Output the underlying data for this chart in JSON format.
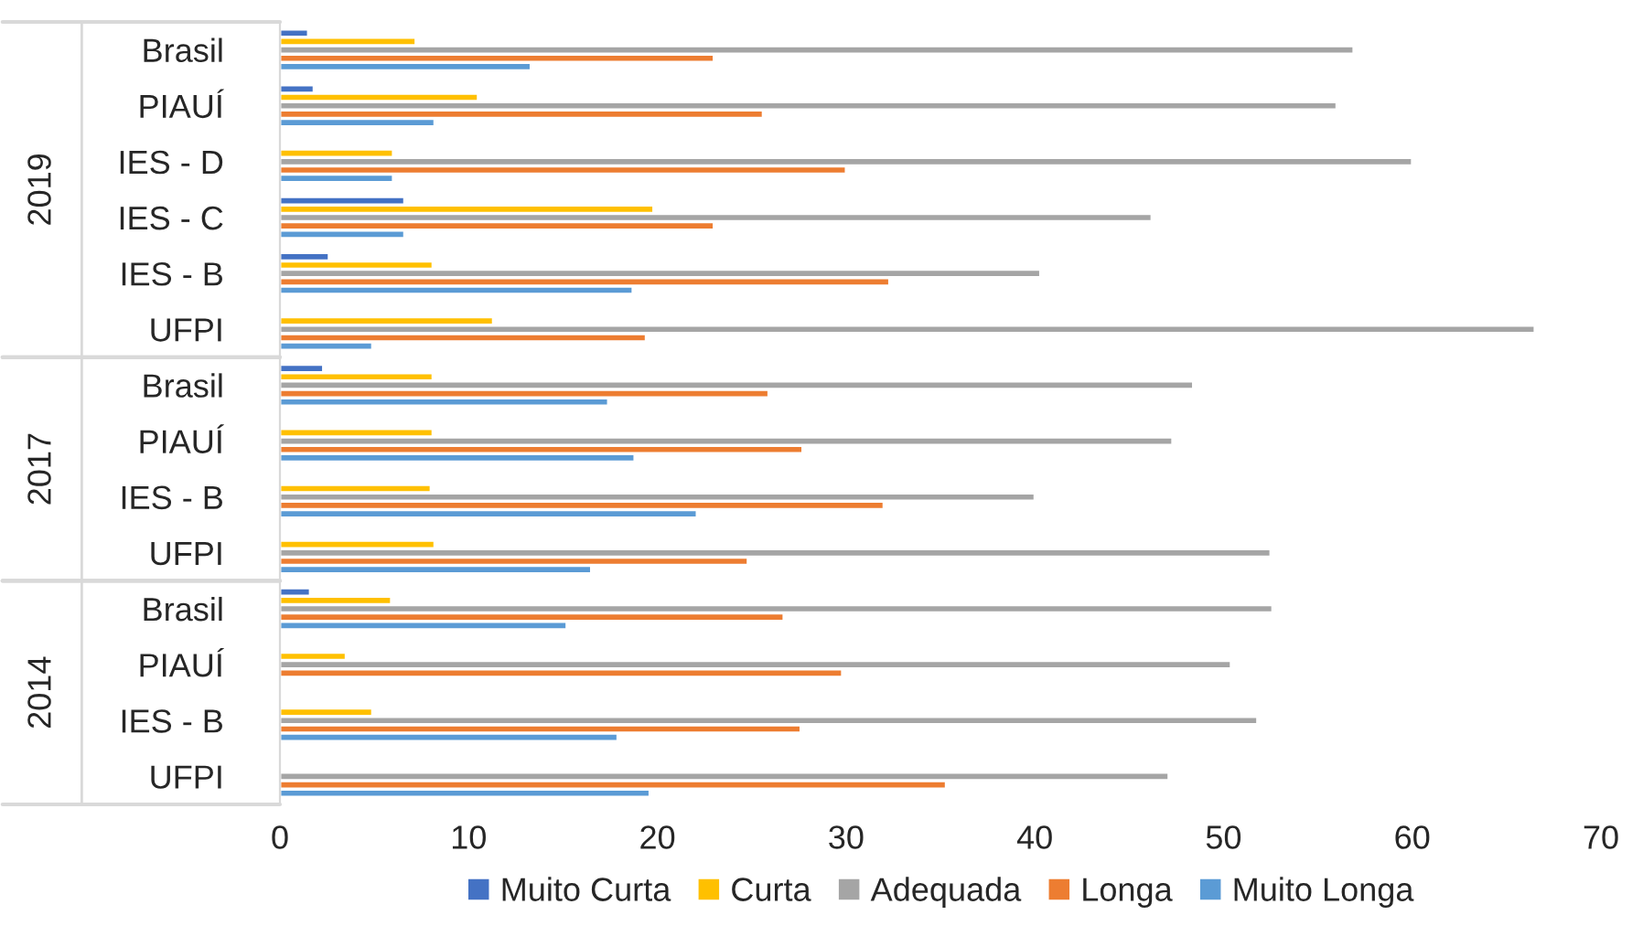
{
  "chart_data": {
    "type": "bar",
    "orientation": "horizontal",
    "categories": [
      "Brasil",
      "PIAUÍ",
      "IES - D",
      "IES - C",
      "IES - B",
      "UFPI",
      "Brasil",
      "PIAUÍ",
      "IES - B",
      "UFPI",
      "Brasil",
      "PIAUÍ",
      "IES - B",
      "UFPI"
    ],
    "annotations": [
      "2019",
      "2017",
      "2014"
    ],
    "series": [
      {
        "name": "Muito Curta",
        "color": "#4472c4",
        "values": [
          1.5,
          1.8,
          null,
          6.6,
          2.6,
          null,
          2.3,
          null,
          null,
          null,
          1.6,
          null,
          null,
          null
        ]
      },
      {
        "name": "Curta",
        "color": "#ffc000",
        "values": [
          7.2,
          10.5,
          6.0,
          19.8,
          8.1,
          11.3,
          8.1,
          8.1,
          8.0,
          8.2,
          5.9,
          3.5,
          4.9,
          null
        ]
      },
      {
        "name": "Adequada",
        "color": "#a5a5a5",
        "values": [
          56.9,
          56.0,
          60.0,
          46.2,
          40.3,
          66.5,
          48.4,
          47.3,
          40.0,
          52.5,
          52.6,
          50.4,
          51.8,
          47.1
        ]
      },
      {
        "name": "Longa",
        "color": "#ed7d31",
        "values": [
          23.0,
          25.6,
          30.0,
          23.0,
          32.3,
          19.4,
          25.9,
          27.7,
          32.0,
          24.8,
          26.7,
          29.8,
          27.6,
          35.3
        ]
      },
      {
        "name": "Muito Longa",
        "color": "#5b9bd5",
        "values": [
          13.3,
          8.2,
          6.0,
          6.6,
          18.7,
          4.9,
          17.4,
          18.8,
          22.1,
          16.5,
          15.2,
          null,
          17.9,
          19.6
        ]
      }
    ],
    "xlim": [
      0,
      70
    ],
    "xticks": [
      0,
      10,
      20,
      30,
      40,
      50,
      60,
      70
    ],
    "grid": false,
    "legend": "bottom"
  }
}
